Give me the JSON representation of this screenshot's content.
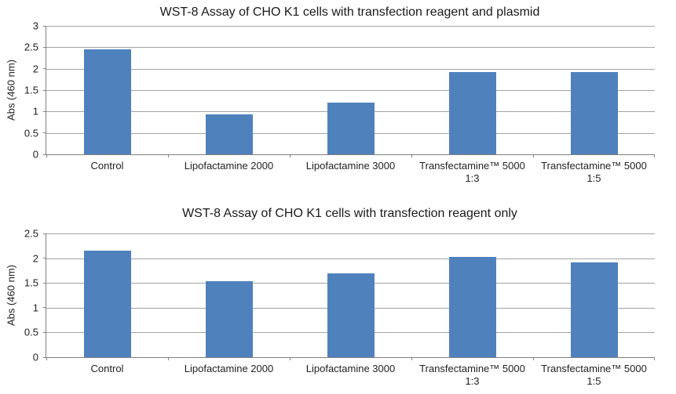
{
  "palette": {
    "bar_color": "#4F81BD",
    "axis_color": "#808080",
    "gridline_color": "#A3A3A3",
    "background": "#FFFFFF",
    "text_color": "#222222"
  },
  "chart_data": [
    {
      "type": "bar",
      "title": "WST-8 Assay of CHO K1 cells with transfection reagent and plasmid",
      "ylabel": "Abs (460 nm)",
      "xlabel": "",
      "legend": "none",
      "grid": true,
      "categories": [
        "Control",
        "Lipofactamine 2000",
        "Lipofactamine 3000",
        "Transfectamine™ 5000 1:3",
        "Transfectamine™ 5000 1:5"
      ],
      "values": [
        2.45,
        0.93,
        1.21,
        1.92,
        1.92
      ],
      "ylim": [
        0,
        3
      ],
      "ytick_values": [
        0,
        0.5,
        1,
        1.5,
        2,
        2.5,
        3
      ],
      "ytick_labels": [
        "0",
        "0.5",
        "1",
        "1.5",
        "2",
        "2.5",
        "3"
      ]
    },
    {
      "type": "bar",
      "title": "WST-8 Assay of CHO K1 cells with transfection reagent only",
      "ylabel": "Abs (460 nm)",
      "xlabel": "",
      "legend": "none",
      "grid": true,
      "categories": [
        "Control",
        "Lipofactamine 2000",
        "Lipofactamine 3000",
        "Transfectamine™ 5000 1:3",
        "Transfectamine™ 5000 1:5"
      ],
      "values": [
        2.15,
        1.53,
        1.7,
        2.02,
        1.92
      ],
      "ylim": [
        0,
        2.5
      ],
      "ytick_values": [
        0,
        0.5,
        1,
        1.5,
        2,
        2.5
      ],
      "ytick_labels": [
        "0",
        "0.5",
        "1",
        "1.5",
        "2",
        "2.5"
      ]
    }
  ]
}
